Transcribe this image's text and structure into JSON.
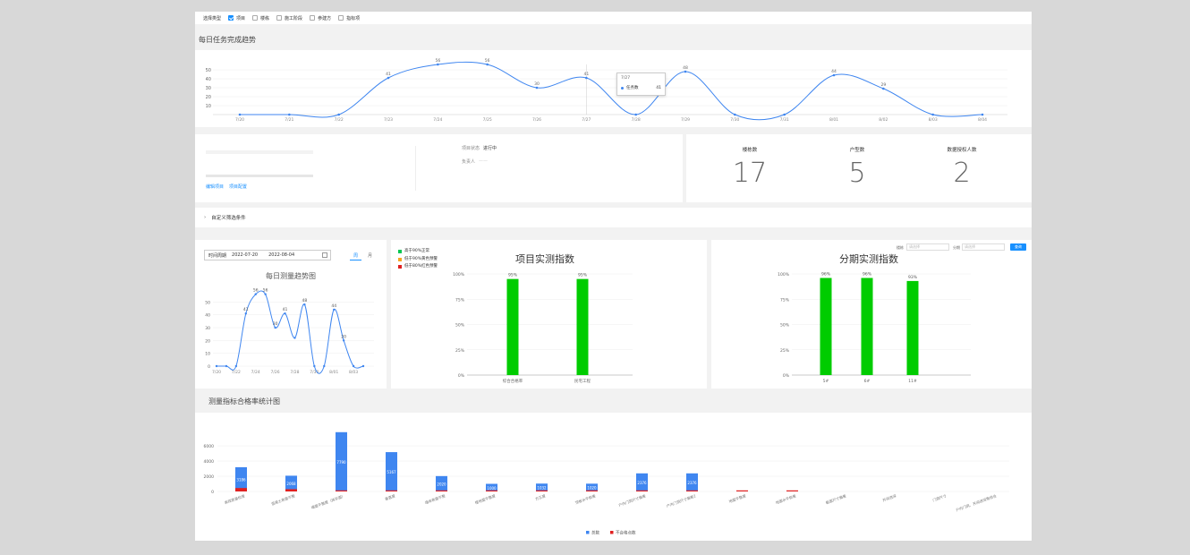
{
  "filter_bar": {
    "label": "选择类型",
    "options": [
      {
        "label": "项目",
        "checked": true
      },
      {
        "label": "楼栋",
        "checked": false
      },
      {
        "label": "施工阶段",
        "checked": false
      },
      {
        "label": "参建方",
        "checked": false
      },
      {
        "label": "指标项",
        "checked": false
      }
    ]
  },
  "daily_tasks": {
    "title": "每日任务完成趋势",
    "tooltip": {
      "date": "7/27",
      "series": "任务数",
      "value": "41"
    },
    "chart_data": {
      "type": "line",
      "x": [
        "7/20",
        "7/21",
        "7/22",
        "7/23",
        "7/24",
        "7/25",
        "7/26",
        "7/27",
        "7/28",
        "7/29",
        "7/30",
        "7/31",
        "8/01",
        "8/02",
        "8/03",
        "8/04"
      ],
      "values": [
        0,
        0,
        0,
        41,
        56,
        56,
        30,
        41,
        0,
        48,
        0,
        0,
        44,
        29,
        0,
        0
      ],
      "yticks": [
        10,
        20,
        30,
        40,
        50
      ],
      "ylim": [
        0,
        56
      ],
      "color": "#3f86f0"
    }
  },
  "project_info": {
    "status_label": "项目状态",
    "status_value": "进行中",
    "owner_label": "负责人",
    "owner_value": "——",
    "link_edit": "编辑项目",
    "link_config": "项目配置"
  },
  "stats": [
    {
      "label": "楼栋数",
      "value": "17"
    },
    {
      "label": "户型数",
      "value": "5"
    },
    {
      "label": "数据授权人数",
      "value": "2"
    }
  ],
  "custom_filter": {
    "arrow": "›",
    "label": "自定义筛选条件"
  },
  "measure_trend": {
    "range_label": "时间周期",
    "start_date": "2022-07-20",
    "end_date": "2022-08-04",
    "toggle_day": "周",
    "toggle_month": "月",
    "chart_data": {
      "type": "line",
      "title": "每日测量趋势图",
      "x": [
        "7/20",
        "7/21",
        "7/22",
        "7/23",
        "7/24",
        "7/25",
        "7/26",
        "7/27",
        "7/28",
        "7/29",
        "7/30",
        "7/31",
        "8/01",
        "8/02",
        "8/03",
        "8/04"
      ],
      "xticks": [
        "7/20",
        "7/22",
        "7/24",
        "7/26",
        "7/28",
        "7/30",
        "8/01",
        "8/03"
      ],
      "values": [
        0,
        0,
        0,
        41,
        56,
        56,
        30,
        41,
        22,
        48,
        0,
        0,
        44,
        20,
        0,
        0
      ],
      "labels": [
        "",
        "",
        "",
        "41",
        "56",
        "56",
        "30",
        "41",
        "",
        "48",
        "",
        "",
        "44",
        "20",
        "",
        ""
      ],
      "yticks": [
        0,
        10,
        20,
        30,
        40,
        50
      ],
      "ylim": [
        0,
        60
      ],
      "color": "#3f86f0"
    }
  },
  "project_index": {
    "legend": [
      {
        "label": "高于90%正常",
        "color": "#00c853"
      },
      {
        "label": "低于90%黄色预警",
        "color": "#f5a623"
      },
      {
        "label": "低于80%红色预警",
        "color": "#e02020"
      }
    ],
    "chart_data": {
      "type": "bar",
      "title": "项目实测指数",
      "categories": [
        "综合合格率",
        "民宅工程"
      ],
      "values": [
        95,
        95
      ],
      "labels": [
        "95%",
        "95%"
      ],
      "yticks": [
        "0%",
        "25%",
        "50%",
        "75%",
        "100%"
      ],
      "ylim": [
        0,
        100
      ],
      "color": "#00cc00"
    }
  },
  "phase_index": {
    "select1_label": "楼栋",
    "select1_value": "请选择",
    "select2_label": "分期",
    "select2_value": "请选择",
    "query_btn": "查询",
    "chart_data": {
      "type": "bar",
      "title": "分期实测指数",
      "categories": [
        "5#",
        "6#",
        "11#"
      ],
      "values": [
        96,
        96,
        93
      ],
      "labels": [
        "96%",
        "96%",
        "93%"
      ],
      "yticks": [
        "0%",
        "25%",
        "50%",
        "75%",
        "100%"
      ],
      "ylim": [
        0,
        100
      ],
      "color": "#00cc00"
    }
  },
  "pass_rate": {
    "title": "测量指标合格率统计图",
    "legend": [
      {
        "label": "总数",
        "color": "#3f86f0"
      },
      {
        "label": "不合格点数",
        "color": "#e02020"
      }
    ],
    "chart_data": {
      "type": "bar",
      "categories": [
        "表观质量检查",
        "混凝土表面平整",
        "墙面平整度（抹灰面）",
        "垂直度",
        "墙体表面平整",
        "楼地面平整度",
        "方正度",
        "顶板水平极差",
        "户内门洞尺寸偏差",
        "户内门洞尺寸偏差2",
        "地面平整度",
        "地面水平极差",
        "截面尺寸偏差",
        "开间进深",
        "门洞尺寸",
        "户内门洞、开间进深等综合"
      ],
      "series": [
        {
          "name": "总数",
          "values": [
            3186,
            2068,
            7790,
            5167,
            2020,
            1000,
            1032,
            1020,
            2376,
            2376,
            80,
            80,
            0,
            0,
            0,
            0
          ],
          "labels": [
            "3186",
            "2068",
            "7790",
            "5167",
            "2020",
            "1000",
            "1032",
            "1020",
            "2376",
            "2376",
            "",
            "",
            "",
            "",
            "",
            ""
          ]
        },
        {
          "name": "不合格点数",
          "values": [
            450,
            300,
            120,
            60,
            40,
            20,
            20,
            20,
            40,
            40,
            80,
            80,
            0,
            0,
            0,
            0
          ]
        }
      ],
      "yticks": [
        0,
        2000,
        4000,
        6000
      ],
      "ylim": [
        0,
        8000
      ]
    }
  }
}
